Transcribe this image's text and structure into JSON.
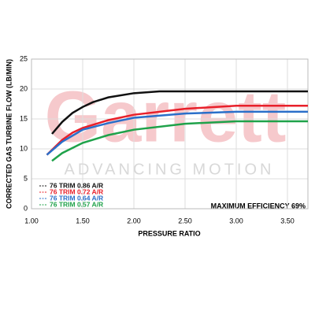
{
  "chart_data": {
    "type": "line",
    "watermark": "Garrett",
    "watermark_subtitle": "ADVANCING MOTION",
    "x_label": "PRESSURE RATIO",
    "y_label": "CORRECTED GAS TURBINE FLOW (LB/MIN)",
    "annotation": "MAXIMUM EFFICIENCY 69%",
    "xlim": [
      1,
      3.7
    ],
    "ylim": [
      0,
      25
    ],
    "xticks": [
      {
        "value": 1,
        "label": "1.00"
      },
      {
        "value": 1.5,
        "label": "1.50"
      },
      {
        "value": 2,
        "label": "2.00"
      },
      {
        "value": 2.5,
        "label": "2.50"
      },
      {
        "value": 3,
        "label": "3.00"
      },
      {
        "value": 3.5,
        "label": "3.50"
      }
    ],
    "yticks": [
      0,
      5,
      10,
      15,
      20,
      25
    ],
    "grid": true,
    "series": [
      {
        "name": "76 TRIM 0.86 A/R",
        "color": "#111111",
        "x": [
          1.2,
          1.3,
          1.4,
          1.5,
          1.6,
          1.75,
          2.0,
          2.25,
          2.5,
          3.0,
          3.7
        ],
        "values": [
          12.5,
          14.5,
          16,
          17,
          17.8,
          18.6,
          19.3,
          19.6,
          19.6,
          19.6,
          19.6
        ]
      },
      {
        "name": "76 TRIM 0.72 A/R",
        "color": "#e8202a",
        "x": [
          1.15,
          1.3,
          1.4,
          1.5,
          1.75,
          2.0,
          2.5,
          3.0,
          3.7
        ],
        "values": [
          9,
          11.5,
          12.7,
          13.5,
          14.8,
          15.7,
          16.7,
          17.2,
          17.2
        ]
      },
      {
        "name": "76 TRIM 0.64 A/R",
        "color": "#2a6fc9",
        "x": [
          1.15,
          1.3,
          1.5,
          1.75,
          2.0,
          2.5,
          3.0,
          3.7
        ],
        "values": [
          9,
          11.2,
          13.2,
          14.3,
          15.2,
          15.9,
          16.2,
          16.2
        ]
      },
      {
        "name": "76 TRIM 0.57 A/R",
        "color": "#1fa24a",
        "x": [
          1.2,
          1.3,
          1.5,
          1.75,
          2.0,
          2.5,
          3.0,
          3.7
        ],
        "values": [
          8,
          9.3,
          11,
          12.3,
          13.2,
          14.2,
          14.6,
          14.6
        ]
      }
    ]
  }
}
